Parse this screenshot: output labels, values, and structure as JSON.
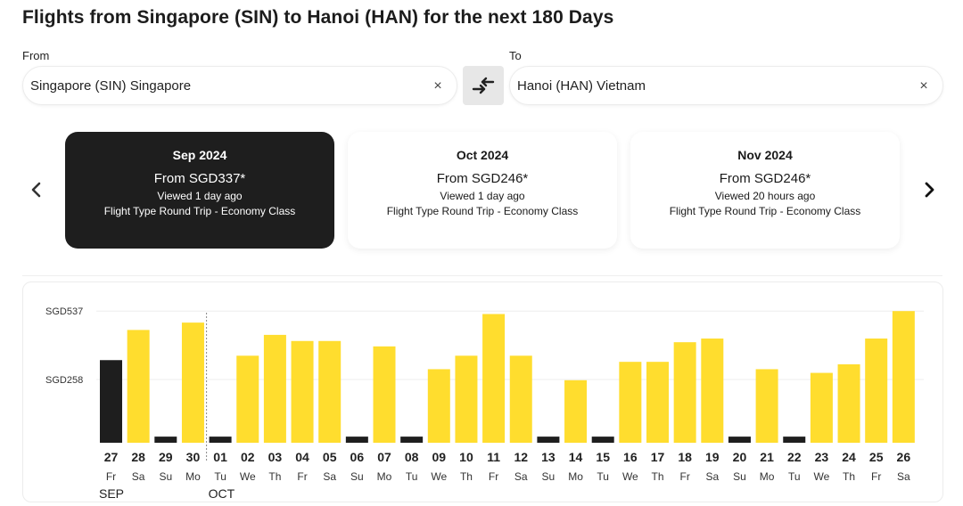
{
  "title": "Flights from Singapore (SIN) to Hanoi (HAN) for the next 180 Days",
  "search": {
    "from_label": "From",
    "from_value": "Singapore (SIN) Singapore",
    "to_label": "To",
    "to_value": "Hanoi (HAN) Vietnam",
    "clear_icon": "×"
  },
  "months": [
    {
      "title": "Sep 2024",
      "price": "From SGD337*",
      "viewed": "Viewed 1 day ago",
      "type": "Flight Type Round Trip - Economy Class",
      "selected": true
    },
    {
      "title": "Oct 2024",
      "price": "From SGD246*",
      "viewed": "Viewed 1 day ago",
      "type": "Flight Type Round Trip - Economy Class",
      "selected": false
    },
    {
      "title": "Nov 2024",
      "price": "From SGD246*",
      "viewed": "Viewed 20 hours ago",
      "type": "Flight Type Round Trip - Economy Class",
      "selected": false
    }
  ],
  "colors": {
    "available": "#ffdd2e",
    "unavailable": "#1e1e1e",
    "grid": "#eeeeee"
  },
  "chart_data": {
    "type": "bar",
    "y_ticks": [
      {
        "label": "SGD537",
        "value": 537
      },
      {
        "label": "SGD258",
        "value": 258
      }
    ],
    "ymax": 545,
    "month_labels": [
      {
        "label": "SEP",
        "start_index": 0
      },
      {
        "label": "OCT",
        "start_index": 4
      }
    ],
    "days": [
      {
        "num": "27",
        "dow": "Fr",
        "value": 337,
        "status": "unavailable"
      },
      {
        "num": "28",
        "dow": "Sa",
        "value": 460,
        "status": "available"
      },
      {
        "num": "29",
        "dow": "Su",
        "value": 25,
        "status": "unavailable"
      },
      {
        "num": "30",
        "dow": "Mo",
        "value": 490,
        "status": "available"
      },
      {
        "num": "01",
        "dow": "Tu",
        "value": 25,
        "status": "unavailable"
      },
      {
        "num": "02",
        "dow": "We",
        "value": 355,
        "status": "available"
      },
      {
        "num": "03",
        "dow": "Th",
        "value": 440,
        "status": "available"
      },
      {
        "num": "04",
        "dow": "Fr",
        "value": 415,
        "status": "available"
      },
      {
        "num": "05",
        "dow": "Sa",
        "value": 415,
        "status": "available"
      },
      {
        "num": "06",
        "dow": "Su",
        "value": 25,
        "status": "unavailable"
      },
      {
        "num": "07",
        "dow": "Mo",
        "value": 393,
        "status": "available"
      },
      {
        "num": "08",
        "dow": "Tu",
        "value": 25,
        "status": "unavailable"
      },
      {
        "num": "09",
        "dow": "We",
        "value": 300,
        "status": "available"
      },
      {
        "num": "10",
        "dow": "Th",
        "value": 355,
        "status": "available"
      },
      {
        "num": "11",
        "dow": "Fr",
        "value": 525,
        "status": "available"
      },
      {
        "num": "12",
        "dow": "Sa",
        "value": 355,
        "status": "available"
      },
      {
        "num": "13",
        "dow": "Su",
        "value": 25,
        "status": "unavailable"
      },
      {
        "num": "14",
        "dow": "Mo",
        "value": 255,
        "status": "available"
      },
      {
        "num": "15",
        "dow": "Tu",
        "value": 25,
        "status": "unavailable"
      },
      {
        "num": "16",
        "dow": "We",
        "value": 330,
        "status": "available"
      },
      {
        "num": "17",
        "dow": "Th",
        "value": 330,
        "status": "available"
      },
      {
        "num": "18",
        "dow": "Fr",
        "value": 410,
        "status": "available"
      },
      {
        "num": "19",
        "dow": "Sa",
        "value": 425,
        "status": "available"
      },
      {
        "num": "20",
        "dow": "Su",
        "value": 25,
        "status": "unavailable"
      },
      {
        "num": "21",
        "dow": "Mo",
        "value": 300,
        "status": "available"
      },
      {
        "num": "22",
        "dow": "Tu",
        "value": 25,
        "status": "unavailable"
      },
      {
        "num": "23",
        "dow": "We",
        "value": 285,
        "status": "available"
      },
      {
        "num": "24",
        "dow": "Th",
        "value": 320,
        "status": "available"
      },
      {
        "num": "25",
        "dow": "Fr",
        "value": 425,
        "status": "available"
      },
      {
        "num": "26",
        "dow": "Sa",
        "value": 537,
        "status": "available"
      }
    ]
  }
}
